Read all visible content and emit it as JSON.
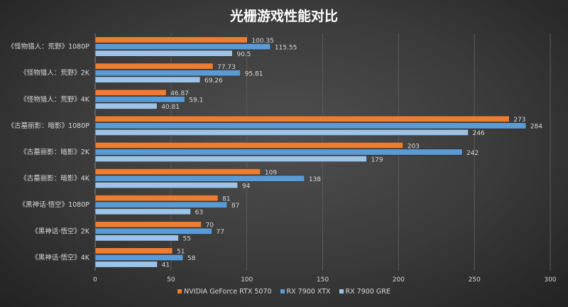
{
  "chart_data": {
    "type": "bar",
    "orientation": "horizontal",
    "title": "光栅游戏性能对比",
    "categories": [
      "《怪物猎人：荒野》1080P",
      "《怪物猎人：荒野》2K",
      "《怪物猎人：荒野》4K",
      "《古墓丽影：暗影》1080P",
      "《古墓丽影：暗影》2K",
      "《古墓丽影：暗影》4K",
      "《黑神话·悟空》1080P",
      "《黑神话·悟空》2K",
      "《黑神话·悟空》4K"
    ],
    "series": [
      {
        "name": "NVIDIA GeForce RTX 5070",
        "color": "#ED7D31",
        "values": [
          100.35,
          77.73,
          46.87,
          273,
          203,
          109,
          81,
          70,
          51
        ]
      },
      {
        "name": "RX 7900 XTX",
        "color": "#5B9BD5",
        "values": [
          115.55,
          95.81,
          59.1,
          284,
          242,
          138,
          87,
          77,
          58
        ]
      },
      {
        "name": "RX 7900 GRE",
        "color": "#9DC3E6",
        "values": [
          90.5,
          69.26,
          40.81,
          246,
          179,
          94,
          63,
          55,
          41
        ]
      }
    ],
    "xlim": [
      0,
      300
    ],
    "xticks": [
      0,
      50,
      100,
      150,
      200,
      250,
      300
    ],
    "grid": true,
    "legend": "bottom",
    "data_labels": true
  }
}
